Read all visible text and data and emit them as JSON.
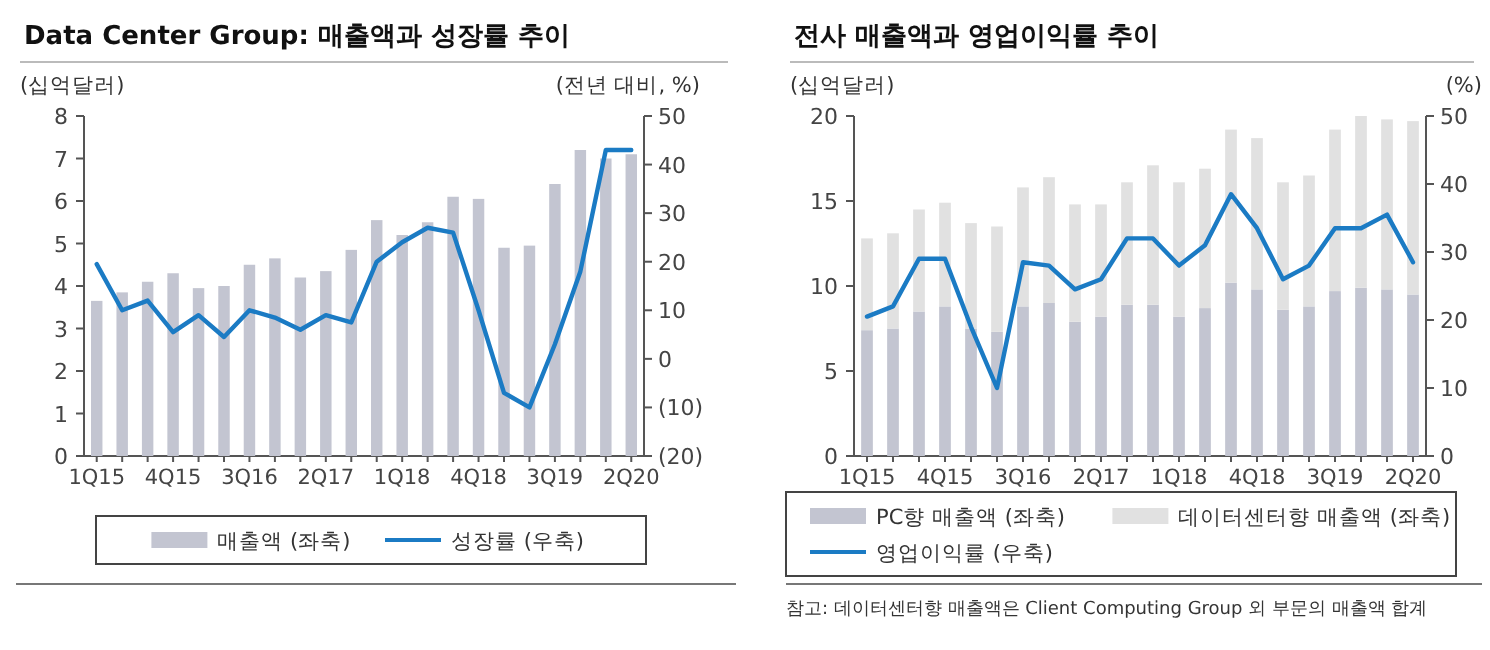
{
  "chart_data": [
    {
      "type": "bar",
      "title": "Data Center Group: 매출액과 성장률 추이",
      "ylabel": "(십억달러)",
      "y2label": "(전년 대비, %)",
      "categories": [
        "1Q15",
        null,
        null,
        "4Q15",
        null,
        null,
        "3Q16",
        null,
        null,
        "2Q17",
        null,
        null,
        "1Q18",
        null,
        null,
        "4Q18",
        null,
        null,
        "3Q19",
        null,
        null,
        "2Q20"
      ],
      "series": [
        {
          "name": "매출액 (좌축)",
          "color": "#c3c5d1",
          "values": [
            3.65,
            3.85,
            4.1,
            4.3,
            3.95,
            4.0,
            4.5,
            4.65,
            4.2,
            4.35,
            4.85,
            5.55,
            5.2,
            5.5,
            6.1,
            6.05,
            4.9,
            4.95,
            6.4,
            7.2,
            7.0,
            7.1
          ]
        },
        {
          "name": "성장률 (우축)",
          "type": "line",
          "axis": "y2",
          "color": "#1b7bc4",
          "values": [
            19.5,
            10,
            12,
            5.5,
            9,
            4.5,
            10,
            8.5,
            6,
            9,
            7.5,
            20,
            24,
            27,
            26,
            10,
            -7,
            -10,
            3,
            18,
            43,
            43
          ]
        }
      ],
      "ylim": [
        0,
        8
      ],
      "yticks": [
        0,
        1,
        2,
        3,
        4,
        5,
        6,
        7,
        8
      ],
      "y2lim": [
        -20,
        50
      ],
      "y2ticks": [
        {
          "value": -20,
          "label": "(20)"
        },
        {
          "value": -10,
          "label": "(10)"
        },
        0,
        10,
        20,
        30,
        40,
        50
      ],
      "grid": false,
      "legend": "bottom",
      "marker": "none",
      "line_style": "solid"
    },
    {
      "type": "bar",
      "title": "전사 매출액과 영업이익률 추이",
      "ylabel": "(십억달러)",
      "y2label": "(%)",
      "stacked": true,
      "categories": [
        "1Q15",
        null,
        null,
        "4Q15",
        null,
        null,
        "3Q16",
        null,
        null,
        "2Q17",
        null,
        null,
        "1Q18",
        null,
        null,
        "4Q18",
        null,
        null,
        "3Q19",
        null,
        null,
        "2Q20"
      ],
      "series": [
        {
          "name": "PC향 매출액 (좌축)",
          "color": "#c3c5d1",
          "values": [
            7.4,
            7.5,
            8.5,
            8.8,
            7.5,
            7.3,
            8.8,
            9.0,
            7.9,
            8.2,
            8.9,
            8.9,
            8.2,
            8.7,
            10.2,
            9.8,
            8.6,
            8.8,
            9.7,
            9.9,
            9.8,
            9.5
          ]
        },
        {
          "name": "데이터센터향 매출액 (좌축)",
          "color": "#e1e1e1",
          "values": [
            5.4,
            5.6,
            6.0,
            6.1,
            6.2,
            6.2,
            7.0,
            7.4,
            6.9,
            6.6,
            7.2,
            8.2,
            7.9,
            8.2,
            9.0,
            8.9,
            7.5,
            7.7,
            9.5,
            10.1,
            10.0,
            10.2
          ]
        },
        {
          "name": "영업이익률 (우축)",
          "type": "line",
          "axis": "y2",
          "color": "#1b7bc4",
          "values": [
            20.5,
            22,
            29,
            29,
            19,
            10,
            28.5,
            28,
            24.5,
            26,
            32,
            32,
            28,
            31,
            38.5,
            33.5,
            26,
            28,
            33.5,
            33.5,
            35.5,
            28.5
          ]
        }
      ],
      "ylim": [
        0,
        20
      ],
      "yticks": [
        0,
        5,
        10,
        15,
        20
      ],
      "y2lim": [
        0,
        50
      ],
      "y2ticks": [
        0,
        10,
        20,
        30,
        40,
        50
      ],
      "grid": false,
      "legend": "bottom",
      "marker": "none",
      "line_style": "solid",
      "annotations": [
        "참고: 데이터센터향 매출액은 Client Computing Group 외 부문의 매출액 합계"
      ]
    }
  ]
}
